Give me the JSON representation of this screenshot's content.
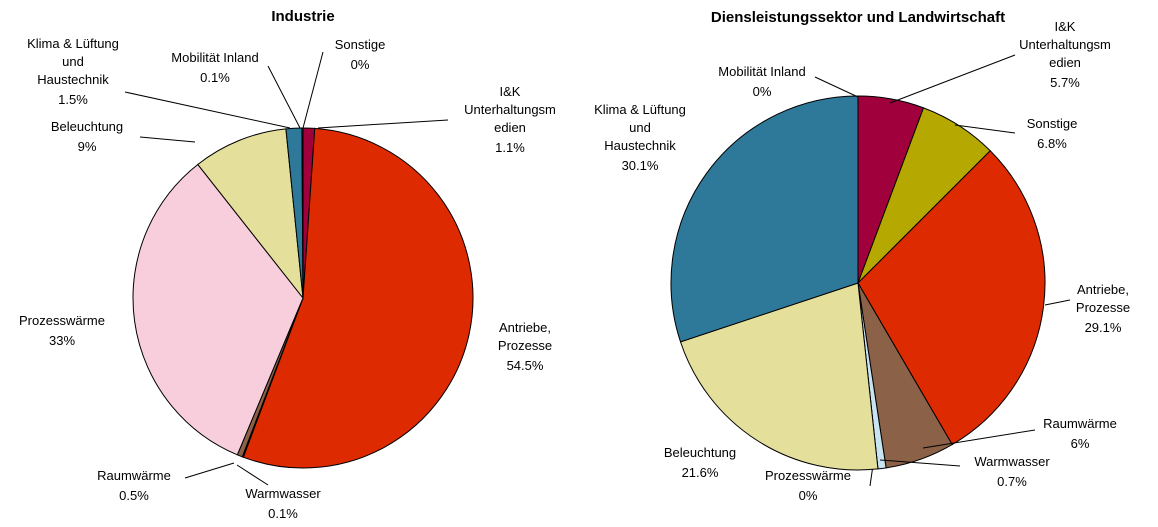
{
  "chart_data": [
    {
      "type": "pie",
      "title": "Industrie",
      "categories": [
        "I&K\nUnterhaltungsm\nedien",
        "Antriebe,\nProzesse",
        "Warmwasser",
        "Raumwärme",
        "Prozesswärme",
        "Beleuchtung",
        "Klima & Lüftung\nund\nHaustechnik",
        "Mobilität Inland",
        "Sonstige"
      ],
      "values": [
        1.1,
        54.5,
        0.1,
        0.5,
        33,
        9,
        1.5,
        0.1,
        0
      ],
      "value_labels": [
        "1.1%",
        "54.5%",
        "0.1%",
        "0.5%",
        "33%",
        "9%",
        "1.5%",
        "0.1%",
        "0%"
      ],
      "colors": [
        "#a0003c",
        "#dd2a00",
        "#c8e4f0",
        "#8b6147",
        "#f8cedc",
        "#e4e09c",
        "#2e7899",
        "#c8e4f0",
        "#b5a800"
      ]
    },
    {
      "type": "pie",
      "title": "Diensleistungssektor und Landwirtschaft",
      "categories": [
        "I&K\nUnterhaltungsm\nedien",
        "Sonstige",
        "Antriebe,\nProzesse",
        "Raumwärme",
        "Warmwasser",
        "Prozesswärme",
        "Beleuchtung",
        "Klima & Lüftung\nund\nHaustechnik",
        "Mobilität Inland"
      ],
      "values": [
        5.7,
        6.8,
        29.1,
        6,
        0.7,
        0,
        21.6,
        30.1,
        0
      ],
      "value_labels": [
        "5.7%",
        "6.8%",
        "29.1%",
        "6%",
        "0.7%",
        "0%",
        "21.6%",
        "30.1%",
        "0%"
      ],
      "colors": [
        "#a0003c",
        "#b5a800",
        "#dd2a00",
        "#8b6147",
        "#c8e4f0",
        "#f8cedc",
        "#e4e09c",
        "#2e7899",
        "#c8e4f0"
      ]
    }
  ]
}
